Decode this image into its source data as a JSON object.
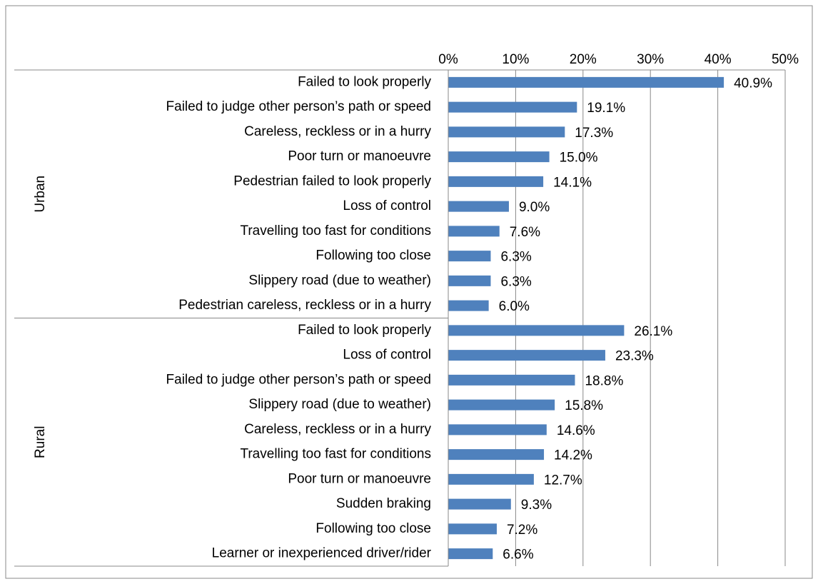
{
  "chart_data": {
    "type": "bar",
    "color": "#4f81bd",
    "grid": true,
    "xlim": [
      0,
      50
    ],
    "xticks": [
      {
        "value": 0,
        "label": "0%"
      },
      {
        "value": 10,
        "label": "10%"
      },
      {
        "value": 20,
        "label": "20%"
      },
      {
        "value": 30,
        "label": "30%"
      },
      {
        "value": 40,
        "label": "40%"
      },
      {
        "value": 50,
        "label": "50%"
      }
    ],
    "groups": [
      {
        "name": "Urban",
        "categories": [
          "Failed to look properly",
          "Failed to judge other person’s path or speed",
          "Careless, reckless or in a hurry",
          "Poor turn or manoeuvre",
          "Pedestrian failed to look properly",
          "Loss of control",
          "Travelling too fast for conditions",
          "Following too close",
          "Slippery road (due to weather)",
          "Pedestrian careless, reckless or in a hurry"
        ],
        "values": [
          40.9,
          19.1,
          17.3,
          15.0,
          14.1,
          9.0,
          7.6,
          6.3,
          6.3,
          6.0
        ],
        "value_labels": [
          "40.9%",
          "19.1%",
          "17.3%",
          "15.0%",
          "14.1%",
          "9.0%",
          "7.6%",
          "6.3%",
          "6.3%",
          "6.0%"
        ]
      },
      {
        "name": "Rural",
        "categories": [
          "Failed to look properly",
          "Loss of control",
          "Failed to judge other person’s path or speed",
          "Slippery road (due to weather)",
          "Careless, reckless or in a hurry",
          "Travelling too fast for conditions",
          "Poor turn or manoeuvre",
          "Sudden braking",
          "Following too close",
          "Learner or inexperienced driver/rider"
        ],
        "values": [
          26.1,
          23.3,
          18.8,
          15.8,
          14.6,
          14.2,
          12.7,
          9.3,
          7.2,
          6.6
        ],
        "value_labels": [
          "26.1%",
          "23.3%",
          "18.8%",
          "15.8%",
          "14.6%",
          "14.2%",
          "12.7%",
          "9.3%",
          "7.2%",
          "6.6%"
        ]
      }
    ]
  }
}
